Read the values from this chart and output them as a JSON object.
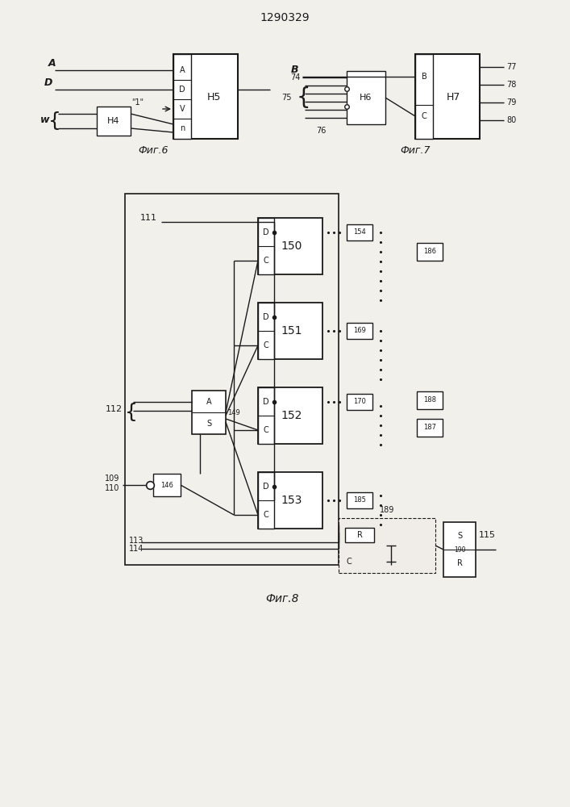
{
  "title": "1290329",
  "fig6_label": "Фиг.6",
  "fig7_label": "Фиг.7",
  "fig8_label": "Фиг.8",
  "bg_color": "#f2f0eb",
  "line_color": "#1a1a1a"
}
